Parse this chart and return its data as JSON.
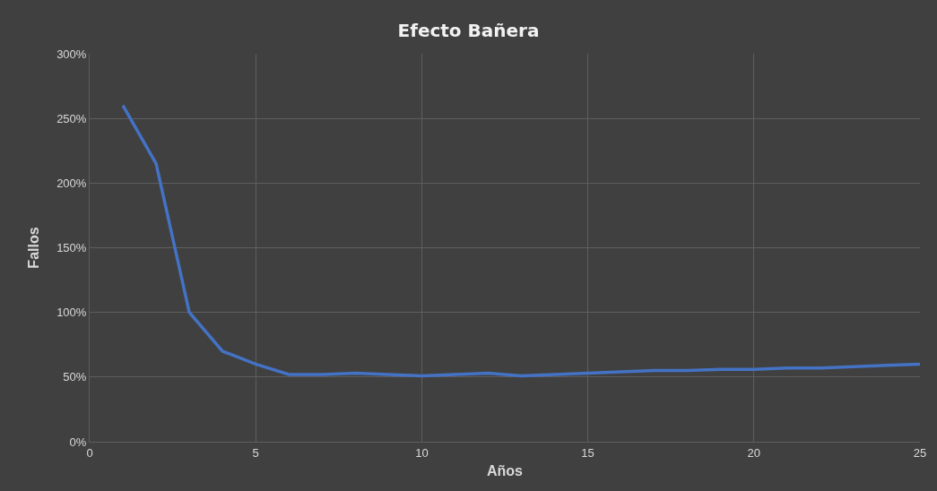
{
  "chart_data": {
    "type": "line",
    "title": "Efecto Bañera",
    "xlabel": "Años",
    "ylabel": "Fallos",
    "x": [
      1,
      2,
      3,
      4,
      5,
      6,
      7,
      8,
      9,
      10,
      11,
      12,
      13,
      14,
      15,
      16,
      17,
      18,
      19,
      20,
      21,
      22,
      23,
      24,
      25
    ],
    "series": [
      {
        "color": "#4472c4",
        "values": [
          260,
          215,
          100,
          70,
          60,
          52,
          52,
          53,
          52,
          51,
          52,
          53,
          51,
          52,
          53,
          54,
          55,
          55,
          56,
          56,
          57,
          57,
          58,
          59,
          60
        ]
      }
    ],
    "xlim": [
      0,
      25
    ],
    "xticks": [
      0,
      5,
      10,
      15,
      20,
      25
    ],
    "ylim": [
      0,
      300
    ],
    "yticks": [
      {
        "value": 0,
        "label": "0%"
      },
      {
        "value": 50,
        "label": "50%"
      },
      {
        "value": 100,
        "label": "100%"
      },
      {
        "value": 150,
        "label": "150%"
      },
      {
        "value": 200,
        "label": "200%"
      },
      {
        "value": 250,
        "label": "250%"
      },
      {
        "value": 300,
        "label": "300%"
      }
    ],
    "grid": true,
    "legend": false,
    "marker": "none",
    "line_style": "solid"
  }
}
